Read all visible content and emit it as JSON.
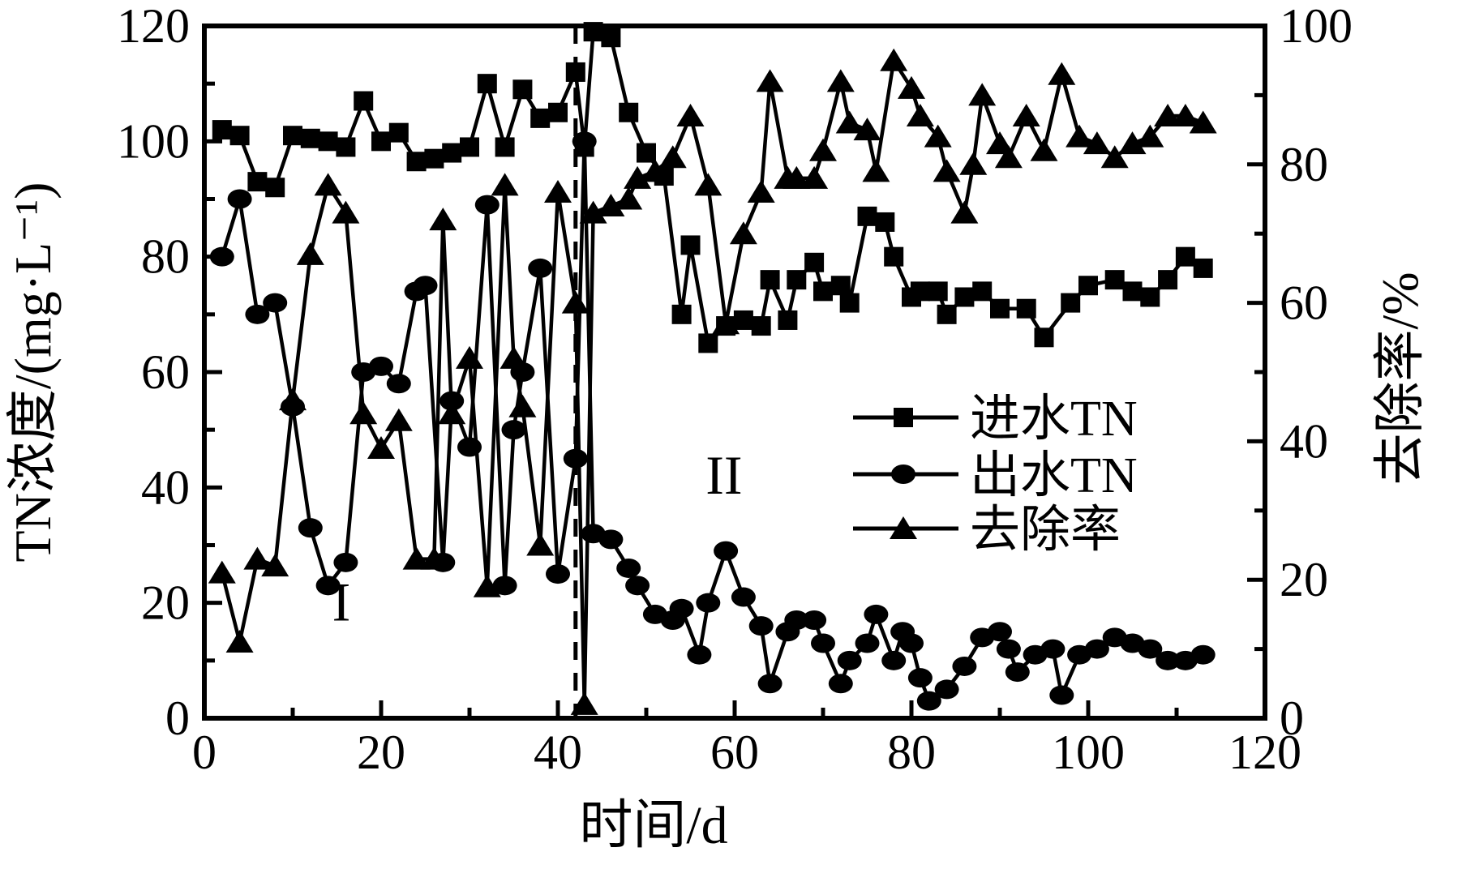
{
  "figure": {
    "background": "#ffffff",
    "ink_color": "#000000"
  },
  "chart_data": {
    "type": "line",
    "title": "",
    "xlabel": "时间/d",
    "ylabel_left": "TN浓度/(mg·L⁻¹)",
    "ylabel_right": "去除率/%",
    "x_range": [
      0,
      120
    ],
    "x_major_step": 20,
    "x_minor_step": 10,
    "yleft_range": [
      0,
      120
    ],
    "yleft_major_step": 20,
    "yleft_minor_step": 10,
    "yright_range": [
      0,
      100
    ],
    "yright_major_step": 20,
    "yright_minor_step": 10,
    "grid": "off",
    "frame": "box",
    "x_major_labels": [
      "0",
      "20",
      "40",
      "60",
      "80",
      "100",
      "120"
    ],
    "yleft_major_labels": [
      "0",
      "20",
      "40",
      "60",
      "80",
      "100",
      "120"
    ],
    "yright_major_labels": [
      "0",
      "20",
      "40",
      "60",
      "80",
      "100"
    ],
    "phase_divider_x": 42,
    "phase_labels": [
      {
        "text": "I",
        "x": 15.5,
        "y_left": 20
      },
      {
        "text": "II",
        "x": 58.8,
        "y_left": 42
      }
    ],
    "legend": {
      "position": "center-right-inside",
      "entries": [
        "进水TN",
        "出水TN",
        "去除率"
      ]
    },
    "series": [
      {
        "name": "进水TN",
        "id": "influent-tn",
        "marker": "square",
        "axis": "left",
        "points": [
          [
            2,
            102
          ],
          [
            4,
            101
          ],
          [
            6,
            93
          ],
          [
            8,
            92
          ],
          [
            10,
            101
          ],
          [
            12,
            100.5
          ],
          [
            14,
            100
          ],
          [
            16,
            99
          ],
          [
            18,
            107
          ],
          [
            20,
            100
          ],
          [
            22,
            101.5
          ],
          [
            24,
            96.5
          ],
          [
            26,
            97
          ],
          [
            28,
            98
          ],
          [
            30,
            99
          ],
          [
            32,
            110
          ],
          [
            34,
            99
          ],
          [
            36,
            109
          ],
          [
            38,
            104
          ],
          [
            40,
            105
          ],
          [
            42,
            112
          ],
          [
            43,
            99
          ],
          [
            44,
            119
          ],
          [
            46,
            118
          ],
          [
            48,
            105
          ],
          [
            50,
            98
          ],
          [
            52,
            94
          ],
          [
            54,
            70
          ],
          [
            55,
            82
          ],
          [
            57,
            65
          ],
          [
            59,
            68
          ],
          [
            61,
            69
          ],
          [
            63,
            68
          ],
          [
            64,
            76
          ],
          [
            66,
            69
          ],
          [
            67,
            76
          ],
          [
            69,
            79
          ],
          [
            70,
            74
          ],
          [
            72,
            75
          ],
          [
            73,
            72
          ],
          [
            75,
            87
          ],
          [
            77,
            86
          ],
          [
            78,
            80
          ],
          [
            80,
            73
          ],
          [
            81,
            74
          ],
          [
            83,
            74
          ],
          [
            84,
            70
          ],
          [
            86,
            73
          ],
          [
            88,
            74
          ],
          [
            90,
            71
          ],
          [
            93,
            71
          ],
          [
            95,
            66
          ],
          [
            98,
            72
          ],
          [
            100,
            75
          ],
          [
            103,
            76
          ],
          [
            105,
            74
          ],
          [
            107,
            73
          ],
          [
            109,
            76
          ],
          [
            111,
            80
          ],
          [
            113,
            78
          ]
        ]
      },
      {
        "name": "出水TN",
        "id": "effluent-tn",
        "marker": "circle",
        "axis": "left",
        "points": [
          [
            2,
            80
          ],
          [
            4,
            90
          ],
          [
            6,
            70
          ],
          [
            8,
            72
          ],
          [
            10,
            54
          ],
          [
            12,
            33
          ],
          [
            14,
            23
          ],
          [
            16,
            27
          ],
          [
            18,
            60
          ],
          [
            20,
            61
          ],
          [
            22,
            58
          ],
          [
            24,
            74
          ],
          [
            25,
            75
          ],
          [
            27,
            27
          ],
          [
            28,
            55
          ],
          [
            30,
            47
          ],
          [
            32,
            89
          ],
          [
            34,
            23
          ],
          [
            35,
            50
          ],
          [
            36,
            60
          ],
          [
            38,
            78
          ],
          [
            40,
            25
          ],
          [
            42,
            45
          ],
          [
            43,
            100
          ],
          [
            44,
            32
          ],
          [
            46,
            31
          ],
          [
            48,
            26
          ],
          [
            49,
            23
          ],
          [
            51,
            18
          ],
          [
            53,
            17
          ],
          [
            54,
            19
          ],
          [
            56,
            11
          ],
          [
            57,
            20
          ],
          [
            59,
            29
          ],
          [
            61,
            21
          ],
          [
            63,
            16
          ],
          [
            64,
            6
          ],
          [
            66,
            15
          ],
          [
            67,
            17
          ],
          [
            69,
            17
          ],
          [
            70,
            13
          ],
          [
            72,
            6
          ],
          [
            73,
            10
          ],
          [
            75,
            13
          ],
          [
            76,
            18
          ],
          [
            78,
            10
          ],
          [
            79,
            15
          ],
          [
            80,
            13
          ],
          [
            81,
            7
          ],
          [
            82,
            3
          ],
          [
            84,
            5
          ],
          [
            86,
            9
          ],
          [
            88,
            14
          ],
          [
            90,
            15
          ],
          [
            91,
            12
          ],
          [
            92,
            8
          ],
          [
            94,
            11
          ],
          [
            96,
            12
          ],
          [
            97,
            4
          ],
          [
            99,
            11
          ],
          [
            101,
            12
          ],
          [
            103,
            14
          ],
          [
            105,
            13
          ],
          [
            107,
            12
          ],
          [
            109,
            10
          ],
          [
            111,
            10
          ],
          [
            113,
            11
          ]
        ]
      },
      {
        "name": "去除率",
        "id": "removal-rate",
        "marker": "triangle",
        "axis": "right",
        "points": [
          [
            2,
            21
          ],
          [
            4,
            11
          ],
          [
            6,
            23
          ],
          [
            8,
            22
          ],
          [
            10,
            46
          ],
          [
            12,
            67
          ],
          [
            14,
            77
          ],
          [
            16,
            73
          ],
          [
            18,
            44
          ],
          [
            20,
            39
          ],
          [
            22,
            43
          ],
          [
            24,
            23
          ],
          [
            26,
            23
          ],
          [
            27,
            72
          ],
          [
            28,
            44
          ],
          [
            30,
            52
          ],
          [
            32,
            19
          ],
          [
            34,
            77
          ],
          [
            35,
            52
          ],
          [
            36,
            45
          ],
          [
            38,
            25
          ],
          [
            40,
            76
          ],
          [
            42,
            60
          ],
          [
            43,
            2
          ],
          [
            44,
            73
          ],
          [
            46,
            74
          ],
          [
            48,
            75
          ],
          [
            49,
            78
          ],
          [
            51,
            79
          ],
          [
            53,
            81
          ],
          [
            55,
            87
          ],
          [
            57,
            77
          ],
          [
            59,
            57
          ],
          [
            61,
            70
          ],
          [
            63,
            76
          ],
          [
            64,
            92
          ],
          [
            66,
            78
          ],
          [
            67,
            78
          ],
          [
            69,
            78
          ],
          [
            70,
            82
          ],
          [
            72,
            92
          ],
          [
            73,
            86
          ],
          [
            75,
            85
          ],
          [
            76,
            79
          ],
          [
            78,
            95
          ],
          [
            80,
            91
          ],
          [
            81,
            87
          ],
          [
            83,
            84
          ],
          [
            84,
            79
          ],
          [
            86,
            73
          ],
          [
            87,
            80
          ],
          [
            88,
            90
          ],
          [
            90,
            83
          ],
          [
            91,
            81
          ],
          [
            93,
            87
          ],
          [
            95,
            82
          ],
          [
            97,
            93
          ],
          [
            99,
            84
          ],
          [
            101,
            83
          ],
          [
            103,
            81
          ],
          [
            105,
            83
          ],
          [
            107,
            84
          ],
          [
            109,
            87
          ],
          [
            111,
            87
          ],
          [
            113,
            86
          ]
        ]
      }
    ]
  }
}
